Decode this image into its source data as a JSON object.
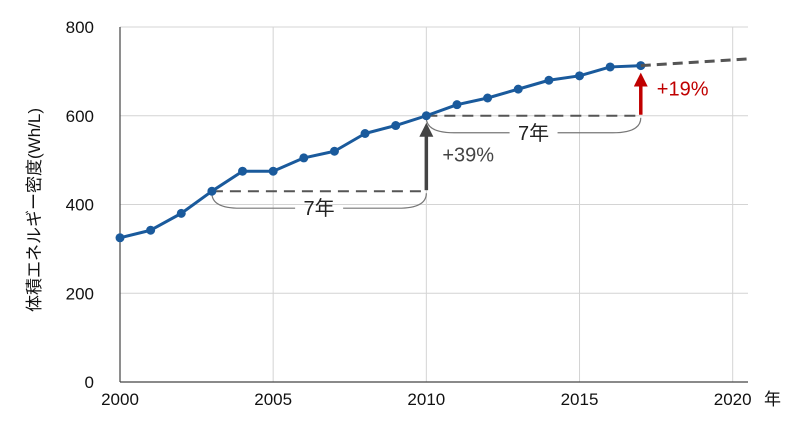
{
  "chart_data": {
    "type": "line",
    "ylabel": "体積エネルギー密度(Wh/L)",
    "xlabel_unit": "年",
    "xlim": [
      2000,
      2020.5
    ],
    "ylim": [
      0,
      800
    ],
    "x_ticks": [
      2000,
      2005,
      2010,
      2015,
      2020
    ],
    "y_ticks": [
      0,
      200,
      400,
      600,
      800
    ],
    "grid": true,
    "series": [
      {
        "style": "solid",
        "color": "#1a5a9c",
        "x": [
          2000,
          2001,
          2002,
          2003,
          2004,
          2005,
          2006,
          2007,
          2008,
          2009,
          2010,
          2011,
          2012,
          2013,
          2014,
          2015,
          2016,
          2017
        ],
        "y": [
          325,
          342,
          380,
          430,
          475,
          475,
          505,
          520,
          560,
          578,
          600,
          625,
          640,
          660,
          680,
          690,
          710,
          713
        ]
      },
      {
        "style": "dashed",
        "color": "#555555",
        "x": [
          2017,
          2020.5
        ],
        "y": [
          713,
          728
        ]
      }
    ],
    "annotations": [
      {
        "text": "7年",
        "from_x": 2003,
        "to_x": 2010,
        "level_y": 430
      },
      {
        "text": "+39%",
        "x": 2010,
        "from_y": 430,
        "to_y": 600,
        "color": "#444444"
      },
      {
        "text": "7年",
        "from_x": 2010,
        "to_x": 2017,
        "level_y": 600
      },
      {
        "text": "+19%",
        "x": 2017,
        "from_y": 600,
        "to_y": 713,
        "color": "#c00000"
      }
    ]
  }
}
